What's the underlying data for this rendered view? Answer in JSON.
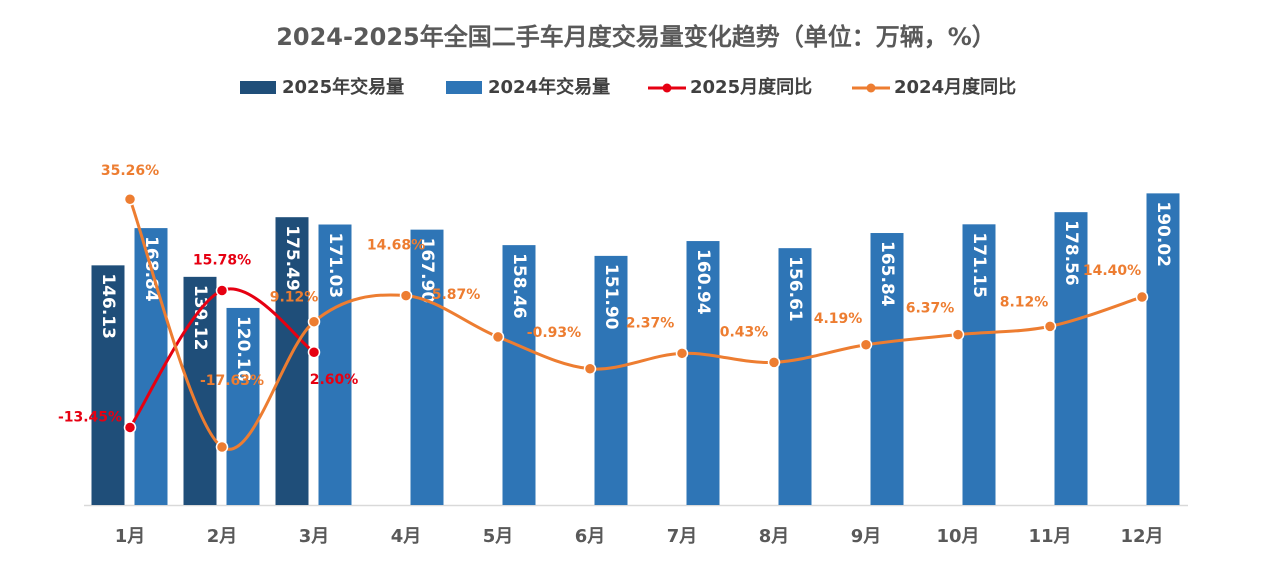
{
  "chart_data": {
    "type": "bar-line",
    "title": "2024-2025年全国二手车月度交易量变化趋势（单位：万辆，%）",
    "categories": [
      "1月",
      "2月",
      "3月",
      "4月",
      "5月",
      "6月",
      "7月",
      "8月",
      "9月",
      "10月",
      "11月",
      "12月"
    ],
    "series": [
      {
        "name": "2025年交易量",
        "type": "bar",
        "color": "#1f4e79",
        "values": [
          146.13,
          139.12,
          175.49,
          null,
          null,
          null,
          null,
          null,
          null,
          null,
          null,
          null
        ],
        "value_labels": [
          "146.13",
          "139.12",
          "175.49",
          null,
          null,
          null,
          null,
          null,
          null,
          null,
          null,
          null
        ]
      },
      {
        "name": "2024年交易量",
        "type": "bar",
        "color": "#2e75b6",
        "values": [
          168.84,
          120.16,
          171.03,
          167.9,
          158.46,
          151.9,
          160.94,
          156.61,
          165.84,
          171.15,
          178.56,
          190.02
        ],
        "value_labels": [
          "168.84",
          "120.16",
          "171.03",
          "167.90",
          "158.46",
          "151.90",
          "160.94",
          "156.61",
          "165.84",
          "171.15",
          "178.56",
          "190.02"
        ]
      },
      {
        "name": "2025月度同比",
        "type": "line",
        "axis": "y2",
        "color": "#e60012",
        "values": [
          -13.45,
          15.78,
          2.6,
          null,
          null,
          null,
          null,
          null,
          null,
          null,
          null,
          null
        ],
        "value_labels": [
          "-13.45%",
          "15.78%",
          "2.60%",
          null,
          null,
          null,
          null,
          null,
          null,
          null,
          null,
          null
        ]
      },
      {
        "name": "2024月度同比",
        "type": "line",
        "axis": "y2",
        "color": "#ed7d31",
        "values": [
          35.26,
          -17.63,
          9.12,
          14.68,
          5.87,
          -0.93,
          2.37,
          0.43,
          4.19,
          6.37,
          8.12,
          14.4
        ],
        "value_labels": [
          "35.26%",
          "-17.63%",
          "9.12%",
          "14.68%",
          "5.87%",
          "-0.93%",
          "2.37%",
          "0.43%",
          "4.19%",
          "6.37%",
          "8.12%",
          "14.40%"
        ]
      }
    ],
    "ylim": [
      0,
      200
    ],
    "y2lim": [
      -30,
      40
    ],
    "smooth": true
  }
}
